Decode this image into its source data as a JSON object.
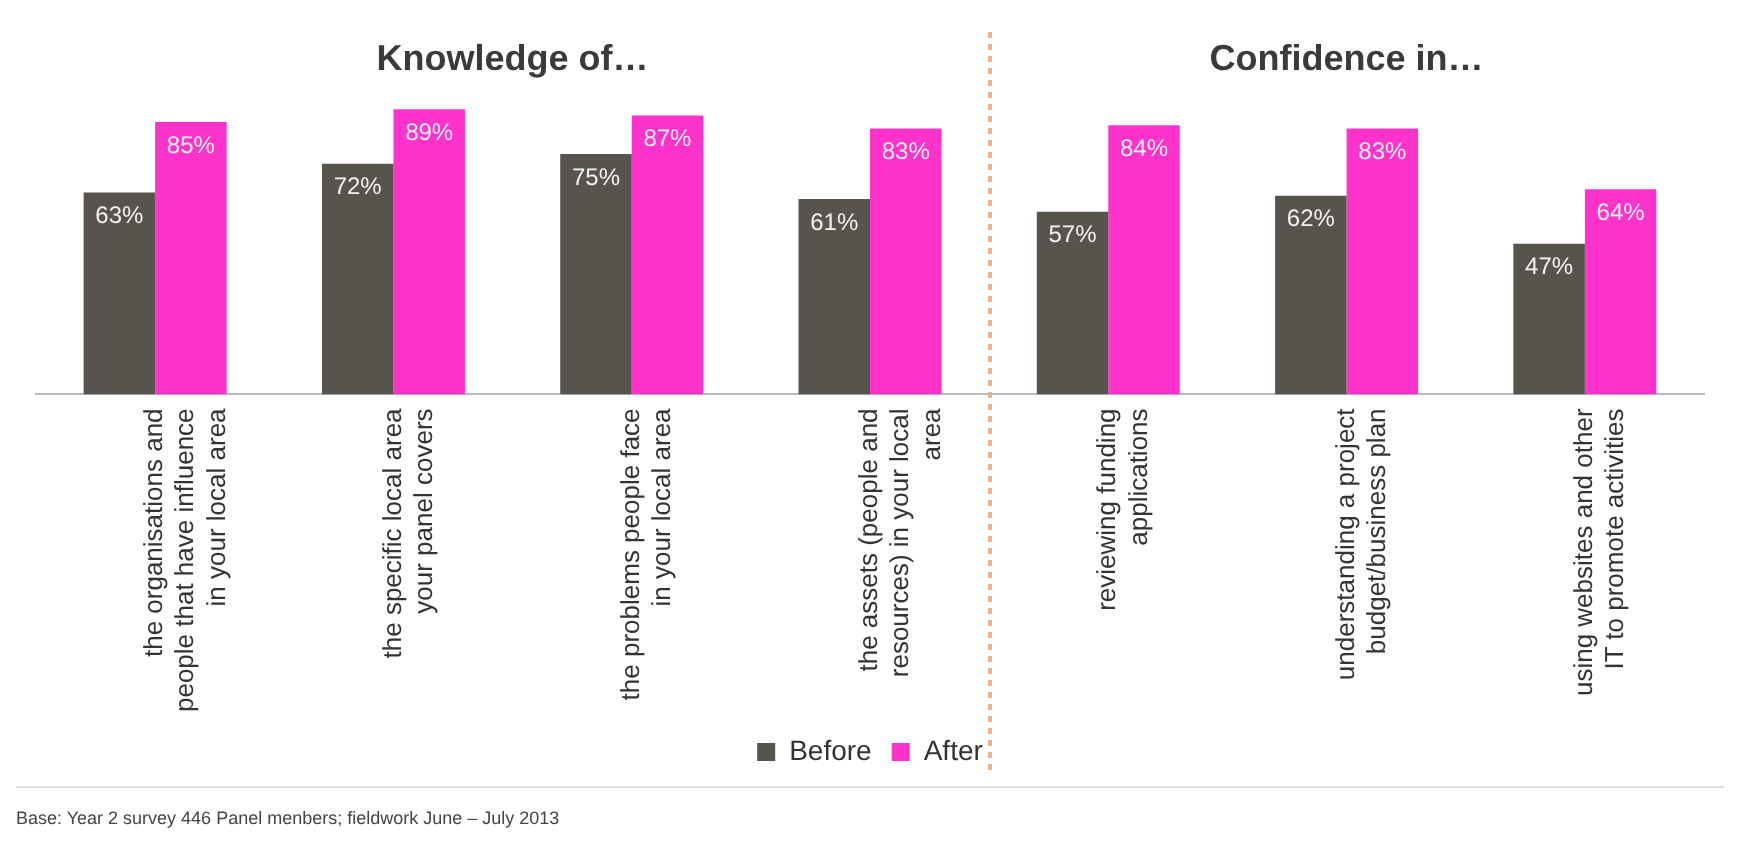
{
  "chart_data": {
    "type": "bar",
    "categories": [
      "the organisations and people that have influence in your local area",
      "the specific local area your panel covers",
      "the problems people face in your local area",
      "the assets (people and resources) in your local area",
      "reviewing funding applications",
      "understanding a project budget/business plan",
      "using websites and other IT to promote activities"
    ],
    "series": [
      {
        "name": "Before",
        "color": "#57534d",
        "values": [
          63,
          72,
          75,
          61,
          57,
          62,
          47
        ],
        "value_labels": [
          "63%",
          "72%",
          "75%",
          "61%",
          "57%",
          "62%",
          "47%"
        ]
      },
      {
        "name": "After",
        "color": "#ff33cc",
        "values": [
          85,
          89,
          87,
          83,
          84,
          83,
          64
        ],
        "value_labels": [
          "85%",
          "89%",
          "87%",
          "83%",
          "84%",
          "83%",
          "64%"
        ]
      }
    ],
    "annotations": [
      "Knowledge of…",
      "Confidence in…",
      "Base: Year 2 survey 446 Panel menbers; fieldwork June – July 2013"
    ],
    "legend": "bottom",
    "grid": false
  }
}
